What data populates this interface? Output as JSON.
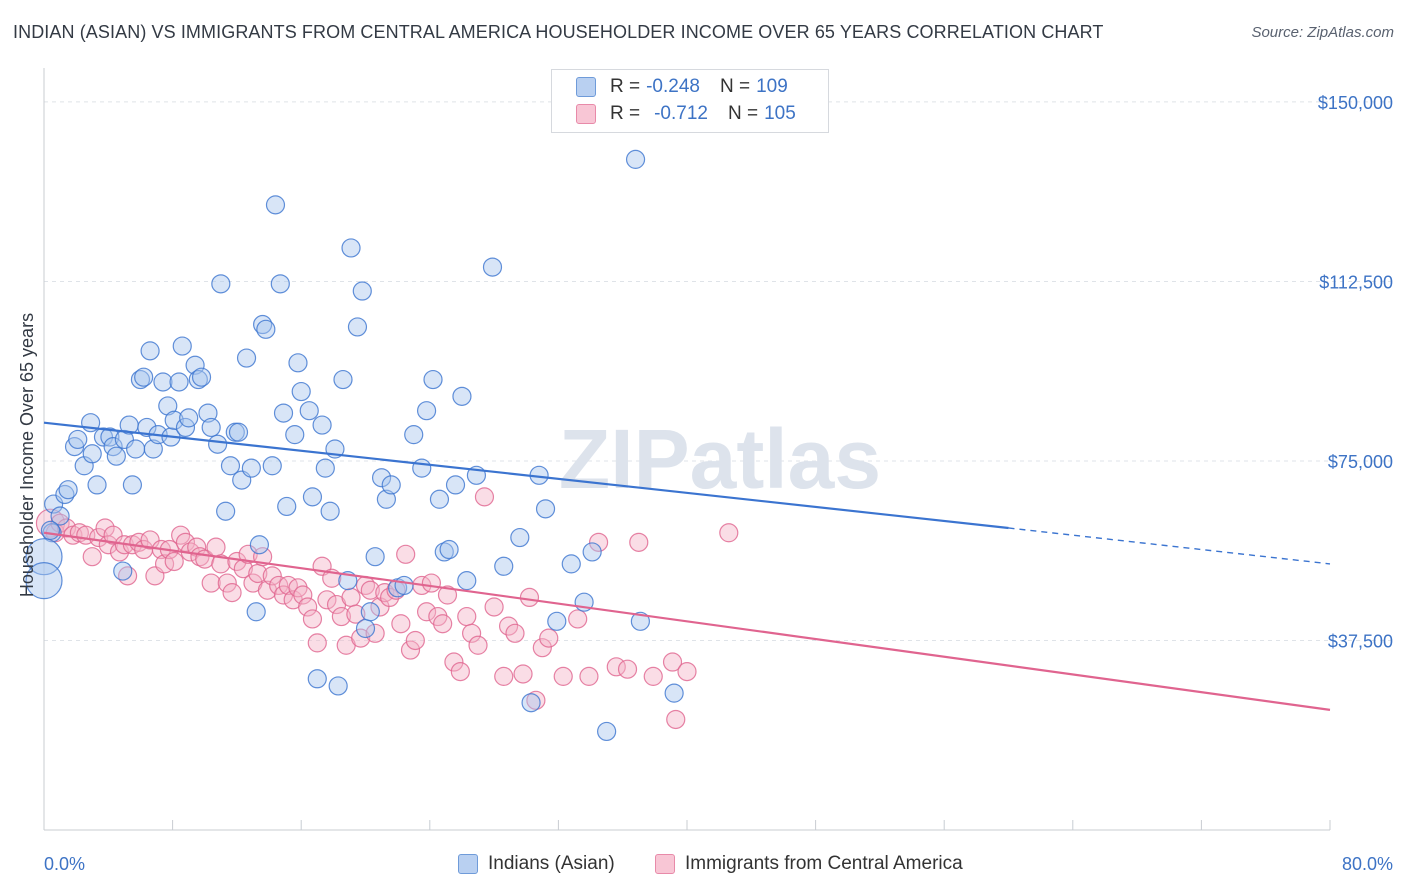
{
  "title": "INDIAN (ASIAN) VS IMMIGRANTS FROM CENTRAL AMERICA HOUSEHOLDER INCOME OVER 65 YEARS CORRELATION CHART",
  "source": "Source: ZipAtlas.com",
  "watermark": "ZIPatlas",
  "colors": {
    "blue": "#3b74d0",
    "blue_fill": "#a9c6ee",
    "pink": "#e0648f",
    "pink_fill": "#f5b3c8",
    "tick_label": "#3d73c5"
  },
  "legend": {
    "r_label": "R =",
    "n_label": "N =",
    "series": [
      {
        "r": "-0.248",
        "n": "109"
      },
      {
        "r": "-0.712",
        "n": "105"
      }
    ]
  },
  "chart_data": {
    "type": "scatter",
    "title": "INDIAN (ASIAN) VS IMMIGRANTS FROM CENTRAL AMERICA HOUSEHOLDER INCOME OVER 65 YEARS CORRELATION CHART",
    "xlabel": "",
    "ylabel": "Householder Income Over 65 years",
    "xlim": [
      0,
      80
    ],
    "ylim": [
      0,
      155000
    ],
    "x_tick_labels": [
      "0.0%",
      "80.0%"
    ],
    "y_tick_labels": [
      "$150,000",
      "$112,500",
      "$75,000",
      "$37,500"
    ],
    "y_ticks": [
      150000,
      112500,
      75000,
      37500
    ],
    "grid": true,
    "legend_position": "top-center",
    "series": [
      {
        "name": "Indians (Asian)",
        "color": "#3b74d0",
        "trend": {
          "x": [
            0,
            60
          ],
          "y": [
            83000,
            61000
          ],
          "dashed_to_x": 80,
          "dashed_to_y": 53500
        },
        "points": [
          [
            0.5,
            60000
          ],
          [
            0.6,
            66000
          ],
          [
            1,
            63500
          ],
          [
            1.3,
            68000
          ],
          [
            1.5,
            69000
          ],
          [
            1.9,
            78000
          ],
          [
            2.1,
            79500
          ],
          [
            2.5,
            74000
          ],
          [
            2.9,
            83000
          ],
          [
            3.0,
            76500
          ],
          [
            3.3,
            70000
          ],
          [
            3.7,
            80000
          ],
          [
            4.1,
            80000
          ],
          [
            4.3,
            78000
          ],
          [
            4.5,
            76000
          ],
          [
            4.9,
            52000
          ],
          [
            5.0,
            79500
          ],
          [
            5.3,
            82500
          ],
          [
            5.5,
            70000
          ],
          [
            5.7,
            77500
          ],
          [
            6.0,
            92000
          ],
          [
            6.2,
            92500
          ],
          [
            6.4,
            82000
          ],
          [
            6.6,
            98000
          ],
          [
            6.8,
            77500
          ],
          [
            7.1,
            80500
          ],
          [
            7.4,
            91500
          ],
          [
            7.7,
            86500
          ],
          [
            7.9,
            80000
          ],
          [
            8.1,
            83500
          ],
          [
            8.4,
            91500
          ],
          [
            8.6,
            99000
          ],
          [
            8.8,
            82000
          ],
          [
            9.0,
            84000
          ],
          [
            9.4,
            95000
          ],
          [
            9.6,
            92000
          ],
          [
            9.8,
            92500
          ],
          [
            10.2,
            85000
          ],
          [
            10.4,
            82000
          ],
          [
            10.8,
            78500
          ],
          [
            11.0,
            112000
          ],
          [
            11.3,
            64500
          ],
          [
            11.6,
            74000
          ],
          [
            11.9,
            81000
          ],
          [
            12.1,
            81000
          ],
          [
            12.3,
            71000
          ],
          [
            12.6,
            96500
          ],
          [
            12.9,
            73500
          ],
          [
            13.2,
            43500
          ],
          [
            13.4,
            57500
          ],
          [
            13.6,
            103500
          ],
          [
            13.8,
            102500
          ],
          [
            14.2,
            74000
          ],
          [
            14.4,
            128500
          ],
          [
            14.7,
            112000
          ],
          [
            14.9,
            85000
          ],
          [
            15.1,
            65500
          ],
          [
            15.6,
            80500
          ],
          [
            15.8,
            95500
          ],
          [
            16.0,
            89500
          ],
          [
            16.5,
            85500
          ],
          [
            16.7,
            67500
          ],
          [
            17.0,
            29500
          ],
          [
            17.3,
            82500
          ],
          [
            17.5,
            73500
          ],
          [
            17.8,
            64500
          ],
          [
            18.1,
            77500
          ],
          [
            18.3,
            28000
          ],
          [
            18.6,
            92000
          ],
          [
            18.9,
            50000
          ],
          [
            19.1,
            119500
          ],
          [
            19.5,
            103000
          ],
          [
            19.8,
            110500
          ],
          [
            20.0,
            40000
          ],
          [
            20.3,
            43500
          ],
          [
            20.6,
            55000
          ],
          [
            21.0,
            71500
          ],
          [
            21.3,
            67000
          ],
          [
            21.6,
            70000
          ],
          [
            22.0,
            48500
          ],
          [
            22.4,
            49000
          ],
          [
            23.0,
            80500
          ],
          [
            23.5,
            73500
          ],
          [
            23.8,
            85500
          ],
          [
            24.2,
            92000
          ],
          [
            24.6,
            67000
          ],
          [
            24.9,
            56000
          ],
          [
            25.2,
            56500
          ],
          [
            25.6,
            70000
          ],
          [
            26.0,
            88500
          ],
          [
            26.3,
            50000
          ],
          [
            26.9,
            72000
          ],
          [
            27.9,
            115500
          ],
          [
            28.6,
            53000
          ],
          [
            29.6,
            59000
          ],
          [
            30.3,
            24500
          ],
          [
            30.8,
            72000
          ],
          [
            31.2,
            65000
          ],
          [
            31.9,
            41500
          ],
          [
            32.8,
            53500
          ],
          [
            33.6,
            45500
          ],
          [
            34.1,
            56000
          ],
          [
            35.0,
            18500
          ],
          [
            36.8,
            138000
          ],
          [
            37.1,
            41500
          ],
          [
            39.2,
            26500
          ],
          [
            0.0,
            55000
          ],
          [
            0.0,
            50000
          ],
          [
            0.4,
            60500
          ]
        ]
      },
      {
        "name": "Immigrants from Central America",
        "color": "#e0648f",
        "trend": {
          "x": [
            0,
            80
          ],
          "y": [
            60000,
            23000
          ]
        },
        "points": [
          [
            0.4,
            62000
          ],
          [
            0.7,
            60000
          ],
          [
            1.0,
            62000
          ],
          [
            1.4,
            61000
          ],
          [
            1.8,
            59500
          ],
          [
            2.2,
            60000
          ],
          [
            2.6,
            59500
          ],
          [
            3.0,
            55000
          ],
          [
            3.4,
            59000
          ],
          [
            3.8,
            61000
          ],
          [
            4.0,
            57500
          ],
          [
            4.3,
            59500
          ],
          [
            4.7,
            56000
          ],
          [
            5.0,
            57500
          ],
          [
            5.2,
            51000
          ],
          [
            5.5,
            57500
          ],
          [
            5.9,
            58000
          ],
          [
            6.2,
            56500
          ],
          [
            6.6,
            58500
          ],
          [
            6.9,
            51000
          ],
          [
            7.3,
            56500
          ],
          [
            7.5,
            53500
          ],
          [
            7.8,
            56500
          ],
          [
            8.1,
            54000
          ],
          [
            8.5,
            59500
          ],
          [
            8.8,
            58000
          ],
          [
            9.1,
            56000
          ],
          [
            9.5,
            57000
          ],
          [
            9.7,
            55000
          ],
          [
            10.0,
            54500
          ],
          [
            10.4,
            49500
          ],
          [
            10.7,
            57000
          ],
          [
            11.0,
            53500
          ],
          [
            11.4,
            49500
          ],
          [
            11.7,
            47500
          ],
          [
            12.0,
            54000
          ],
          [
            12.4,
            52500
          ],
          [
            12.7,
            55500
          ],
          [
            13.0,
            49500
          ],
          [
            13.3,
            51500
          ],
          [
            13.6,
            55000
          ],
          [
            13.9,
            48000
          ],
          [
            14.2,
            51000
          ],
          [
            14.6,
            49000
          ],
          [
            14.9,
            47000
          ],
          [
            15.2,
            49000
          ],
          [
            15.5,
            46000
          ],
          [
            15.8,
            48500
          ],
          [
            16.1,
            47000
          ],
          [
            16.4,
            44500
          ],
          [
            16.7,
            42000
          ],
          [
            17.0,
            37000
          ],
          [
            17.3,
            53000
          ],
          [
            17.6,
            46000
          ],
          [
            17.9,
            50500
          ],
          [
            18.2,
            45000
          ],
          [
            18.5,
            42500
          ],
          [
            18.8,
            36500
          ],
          [
            19.1,
            46500
          ],
          [
            19.4,
            43000
          ],
          [
            19.7,
            38000
          ],
          [
            20.0,
            49000
          ],
          [
            20.3,
            48000
          ],
          [
            20.6,
            39000
          ],
          [
            20.9,
            44500
          ],
          [
            21.2,
            47500
          ],
          [
            21.5,
            46500
          ],
          [
            21.9,
            48000
          ],
          [
            22.2,
            41000
          ],
          [
            22.5,
            55500
          ],
          [
            22.8,
            35500
          ],
          [
            23.1,
            37500
          ],
          [
            23.5,
            49000
          ],
          [
            23.8,
            43500
          ],
          [
            24.1,
            49500
          ],
          [
            24.5,
            42500
          ],
          [
            24.8,
            41000
          ],
          [
            25.1,
            47000
          ],
          [
            25.5,
            33000
          ],
          [
            25.9,
            31000
          ],
          [
            26.3,
            42500
          ],
          [
            26.6,
            39000
          ],
          [
            27.0,
            36500
          ],
          [
            27.4,
            67500
          ],
          [
            28.0,
            44500
          ],
          [
            28.6,
            30000
          ],
          [
            28.9,
            40500
          ],
          [
            29.3,
            39000
          ],
          [
            29.8,
            30500
          ],
          [
            30.2,
            46500
          ],
          [
            30.6,
            25000
          ],
          [
            31.0,
            36000
          ],
          [
            31.4,
            38000
          ],
          [
            32.3,
            30000
          ],
          [
            33.2,
            42000
          ],
          [
            33.9,
            30000
          ],
          [
            34.5,
            58000
          ],
          [
            35.6,
            32000
          ],
          [
            36.3,
            31500
          ],
          [
            37.0,
            58000
          ],
          [
            37.9,
            30000
          ],
          [
            39.1,
            33000
          ],
          [
            39.3,
            21000
          ],
          [
            42.6,
            60000
          ],
          [
            40.0,
            31000
          ]
        ]
      }
    ]
  }
}
